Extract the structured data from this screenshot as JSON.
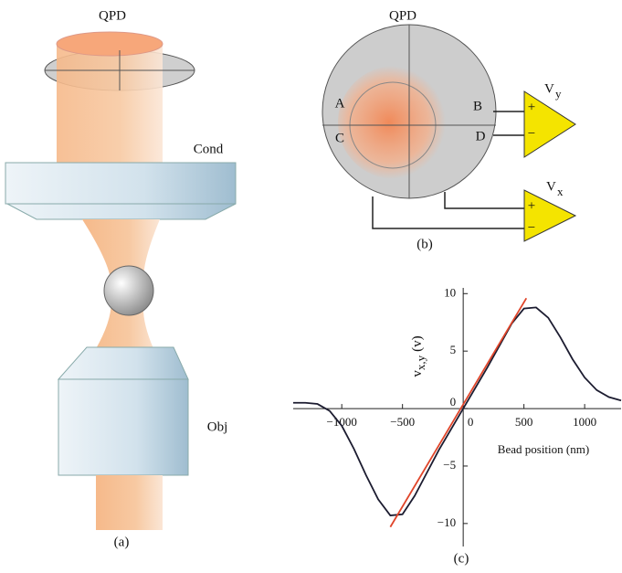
{
  "panel_a": {
    "qpd": "QPD",
    "cond": "Cond",
    "obj": "Obj",
    "caption": "(a)"
  },
  "panel_b": {
    "qpd": "QPD",
    "a": "A",
    "b": "B",
    "c": "C",
    "d": "D",
    "amp_y": {
      "plus": "+",
      "minus": "−",
      "v": "V",
      "sub": "y"
    },
    "amp_x": {
      "plus": "+",
      "minus": "−",
      "v": "V",
      "sub": "x"
    },
    "caption": "(b)"
  },
  "chart_data": {
    "type": "line",
    "caption": "(c)",
    "x_label": "Bead position (nm)",
    "y_label": {
      "main": "v",
      "sub": "x,y",
      "unit": "(v)"
    },
    "xlim": [
      -1400,
      1300
    ],
    "ylim": [
      -12,
      10.5
    ],
    "xticks": [
      {
        "value": -1000,
        "label": "−1000"
      },
      {
        "value": -500,
        "label": "−500"
      },
      0,
      500,
      1000
    ],
    "yticks": [
      {
        "value": -10,
        "label": "−10"
      },
      {
        "value": -5,
        "label": "−5"
      },
      0,
      5,
      10
    ],
    "series": [
      {
        "color": "#1c1c30",
        "x": [
          -1400,
          -1300,
          -1200,
          -1100,
          -1000,
          -900,
          -800,
          -700,
          -600,
          -500,
          -400,
          -300,
          -200,
          -100,
          0,
          100,
          200,
          300,
          400,
          500,
          600,
          700,
          800,
          900,
          1000,
          1100,
          1200,
          1300
        ],
        "values": [
          0.5,
          0.5,
          0.4,
          -0.2,
          -1.5,
          -3.5,
          -5.8,
          -7.9,
          -9.3,
          -9.2,
          -7.6,
          -5.6,
          -3.6,
          -1.8,
          0,
          1.8,
          3.6,
          5.5,
          7.4,
          8.7,
          8.8,
          7.9,
          6.2,
          4.3,
          2.7,
          1.6,
          1.0,
          0.7
        ]
      },
      {
        "color": "#e0452a",
        "x": [
          -600,
          520
        ],
        "values": [
          -10.3,
          9.6
        ]
      }
    ]
  }
}
